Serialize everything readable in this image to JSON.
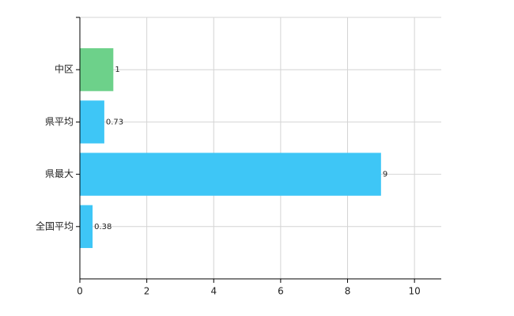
{
  "chart_data": {
    "type": "bar",
    "orientation": "horizontal",
    "categories": [
      "中区",
      "県平均",
      "県最大",
      "全国平均"
    ],
    "values": [
      1,
      0.73,
      9,
      0.38
    ],
    "colors": [
      "#6dd18a",
      "#3ec6f6",
      "#3ec6f6",
      "#3ec6f6"
    ],
    "xlim": [
      0,
      10.8
    ],
    "xticks": [
      0,
      2,
      4,
      6,
      8,
      10
    ],
    "grid": true
  }
}
